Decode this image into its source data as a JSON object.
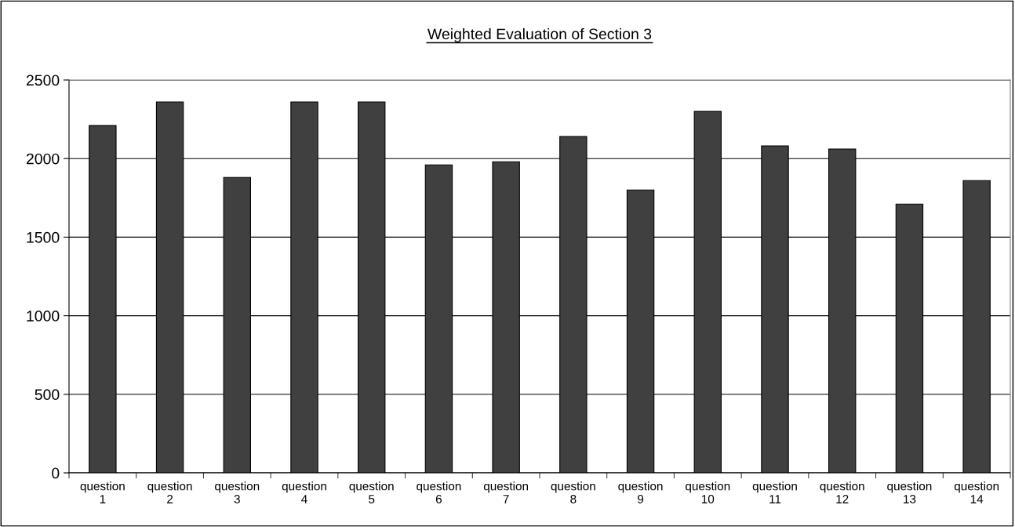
{
  "chart_data": {
    "type": "bar",
    "title": "Weighted Evaluation of Section 3",
    "categories": [
      "question 1",
      "question 2",
      "question 3",
      "question 4",
      "question 5",
      "question 6",
      "question 7",
      "question 8",
      "question 9",
      "question 10",
      "question 11",
      "question 12",
      "question 13",
      "question 14"
    ],
    "values": [
      2210,
      2360,
      1880,
      2360,
      2360,
      1960,
      1980,
      2140,
      1800,
      2300,
      2080,
      2060,
      1710,
      1860
    ],
    "color": "#404040",
    "ylim": [
      0,
      2500
    ],
    "yticks": [
      0,
      500,
      1000,
      1500,
      2000,
      2500
    ],
    "grid": "y",
    "legend": false
  }
}
